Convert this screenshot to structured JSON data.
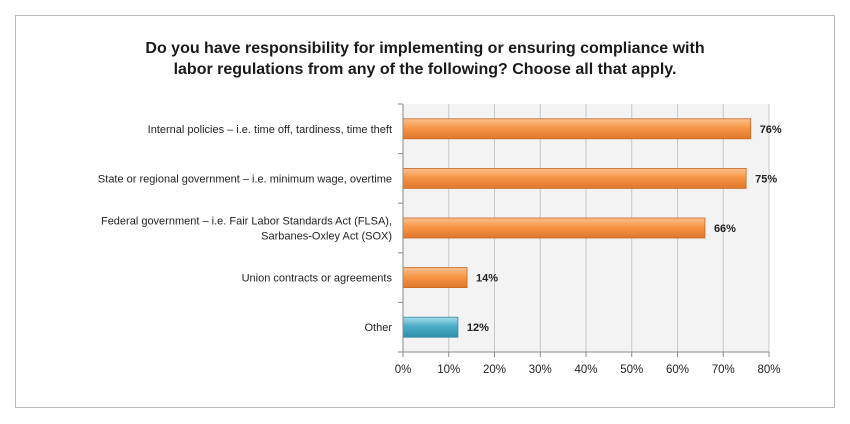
{
  "chart_data": {
    "type": "bar",
    "orientation": "horizontal",
    "title_lines": [
      "Do you have responsibility for implementing or ensuring compliance with",
      "labor regulations from any of the following? Choose all that apply."
    ],
    "categories": [
      [
        "Internal policies – i.e. time off,  tardiness, time theft"
      ],
      [
        "State or regional government – i.e. minimum wage, overtime"
      ],
      [
        "Federal government – i.e. Fair Labor Standards Act (FLSA),",
        "Sarbanes-Oxley Act (SOX)"
      ],
      [
        "Union contracts or agreements"
      ],
      [
        "Other"
      ]
    ],
    "values": [
      76,
      75,
      66,
      14,
      12
    ],
    "value_labels": [
      "76%",
      "75%",
      "66%",
      "14%",
      "12%"
    ],
    "bar_colors": [
      "#f79646",
      "#f79646",
      "#f79646",
      "#f79646",
      "#4bacc6"
    ],
    "xlim": [
      0,
      80
    ],
    "xticks": [
      0,
      10,
      20,
      30,
      40,
      50,
      60,
      70,
      80
    ],
    "xtick_labels": [
      "0%",
      "10%",
      "20%",
      "30%",
      "40%",
      "50%",
      "60%",
      "70%",
      "80%"
    ],
    "grid": true,
    "legend": "none"
  }
}
